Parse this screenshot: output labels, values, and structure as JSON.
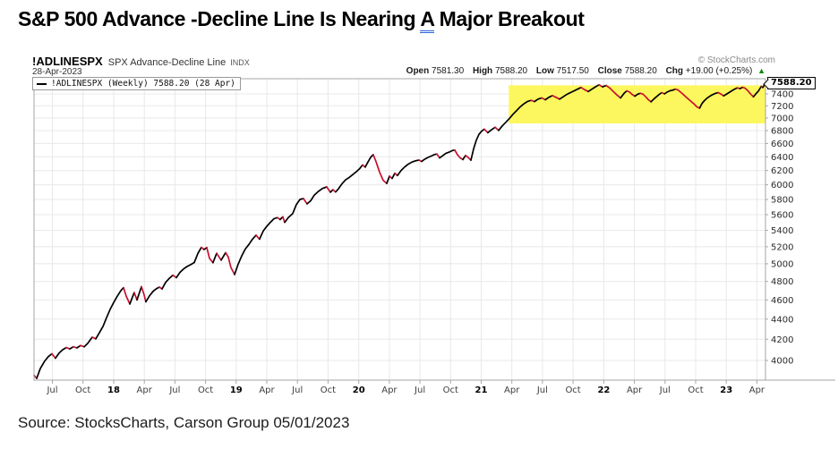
{
  "title": {
    "prefix": "S&P 500 Advance -Decline Line Is Nearing ",
    "underlined_word": "A",
    "suffix": " Major Breakout"
  },
  "source_line": "Source: StocksCharts, Carson Group 05/01/2023",
  "chart_header": {
    "symbol": "!ADLINESPX",
    "name": "SPX Advance-Decline Line",
    "exchange": "INDX",
    "date": "28-Apr-2023",
    "copyright": "© StockCharts.com",
    "quote": {
      "open_label": "Open",
      "open": "7581.30",
      "high_label": "High",
      "high": "7588.20",
      "low_label": "Low",
      "low": "7517.50",
      "close_label": "Close",
      "close": "7588.20",
      "chg_label": "Chg",
      "chg": "+19.00 (+0.25%)",
      "up_arrow": "▲"
    }
  },
  "legend_text": "!ADLINESPX (Weekly) 7588.20 (28 Apr)",
  "price_label": "7588.20",
  "colors": {
    "line_up": "#000000",
    "line_down": "#c8102e",
    "highlight": "#fcf75e",
    "grid": "#e8e8e8",
    "axis": "#a6a6a6",
    "tick_text": "#2a2a2a",
    "month_text": "#3c3c3c",
    "year_text": "#000000",
    "chg_up": "#0a8a0a",
    "title_underline": "#2b5fd9"
  },
  "chart_data": {
    "type": "line",
    "title": "!ADLINESPX (Weekly)",
    "scale": "log",
    "grid": true,
    "x_range": [
      2017.35,
      2023.32
    ],
    "value_range": [
      3822,
      7665
    ],
    "last_value": 7588.2,
    "last_date": "28 Apr 2023",
    "y_ticks": [
      7400,
      7200,
      7000,
      6800,
      6600,
      6400,
      6200,
      6000,
      5800,
      5600,
      5400,
      5200,
      5000,
      4800,
      4600,
      4400,
      4200,
      4000
    ],
    "x_ticks": [
      {
        "l": "Jul",
        "t": 2017.5
      },
      {
        "l": "Oct",
        "t": 2017.75
      },
      {
        "l": "18",
        "t": 2018.0,
        "b": 1
      },
      {
        "l": "Apr",
        "t": 2018.25
      },
      {
        "l": "Jul",
        "t": 2018.5
      },
      {
        "l": "Oct",
        "t": 2018.75
      },
      {
        "l": "19",
        "t": 2019.0,
        "b": 1
      },
      {
        "l": "Apr",
        "t": 2019.25
      },
      {
        "l": "Jul",
        "t": 2019.5
      },
      {
        "l": "Oct",
        "t": 2019.75
      },
      {
        "l": "20",
        "t": 2020.0,
        "b": 1
      },
      {
        "l": "Apr",
        "t": 2020.25
      },
      {
        "l": "Jul",
        "t": 2020.5
      },
      {
        "l": "Oct",
        "t": 2020.75
      },
      {
        "l": "21",
        "t": 2021.0,
        "b": 1
      },
      {
        "l": "Apr",
        "t": 2021.25
      },
      {
        "l": "Jul",
        "t": 2021.5
      },
      {
        "l": "Oct",
        "t": 2021.75
      },
      {
        "l": "22",
        "t": 2022.0,
        "b": 1
      },
      {
        "l": "Apr",
        "t": 2022.25
      },
      {
        "l": "Jul",
        "t": 2022.5
      },
      {
        "l": "Oct",
        "t": 2022.75
      },
      {
        "l": "23",
        "t": 2023.0,
        "b": 1
      },
      {
        "l": "Apr",
        "t": 2023.25
      }
    ],
    "highlight_region": {
      "t0": 2021.225,
      "t1": 2023.32,
      "v0": 6912,
      "v1": 7548,
      "note": "yellow breakout resistance zone"
    },
    "series": [
      {
        "name": "!ADLINESPX",
        "points": [
          [
            2017.35,
            3865
          ],
          [
            2017.372,
            3838
          ],
          [
            2017.401,
            3925
          ],
          [
            2017.438,
            3995
          ],
          [
            2017.467,
            4035
          ],
          [
            2017.496,
            4062
          ],
          [
            2017.525,
            4020
          ],
          [
            2017.555,
            4070
          ],
          [
            2017.584,
            4100
          ],
          [
            2017.613,
            4120
          ],
          [
            2017.642,
            4108
          ],
          [
            2017.671,
            4128
          ],
          [
            2017.701,
            4118
          ],
          [
            2017.73,
            4140
          ],
          [
            2017.759,
            4128
          ],
          [
            2017.788,
            4160
          ],
          [
            2017.825,
            4220
          ],
          [
            2017.854,
            4205
          ],
          [
            2017.883,
            4262
          ],
          [
            2017.913,
            4325
          ],
          [
            2017.942,
            4415
          ],
          [
            2017.971,
            4500
          ],
          [
            2018.0,
            4572
          ],
          [
            2018.029,
            4638
          ],
          [
            2018.059,
            4700
          ],
          [
            2018.081,
            4732
          ],
          [
            2018.103,
            4640
          ],
          [
            2018.132,
            4556
          ],
          [
            2018.168,
            4678
          ],
          [
            2018.19,
            4600
          ],
          [
            2018.227,
            4742
          ],
          [
            2018.249,
            4652
          ],
          [
            2018.263,
            4580
          ],
          [
            2018.293,
            4645
          ],
          [
            2018.322,
            4692
          ],
          [
            2018.351,
            4722
          ],
          [
            2018.373,
            4738
          ],
          [
            2018.395,
            4718
          ],
          [
            2018.424,
            4790
          ],
          [
            2018.453,
            4832
          ],
          [
            2018.483,
            4870
          ],
          [
            2018.512,
            4842
          ],
          [
            2018.541,
            4902
          ],
          [
            2018.57,
            4940
          ],
          [
            2018.599,
            4968
          ],
          [
            2018.629,
            4990
          ],
          [
            2018.658,
            5014
          ],
          [
            2018.687,
            5120
          ],
          [
            2018.716,
            5192
          ],
          [
            2018.738,
            5168
          ],
          [
            2018.76,
            5190
          ],
          [
            2018.782,
            5062
          ],
          [
            2018.811,
            5012
          ],
          [
            2018.841,
            5122
          ],
          [
            2018.877,
            5042
          ],
          [
            2018.914,
            5130
          ],
          [
            2018.936,
            5078
          ],
          [
            2018.957,
            4958
          ],
          [
            2018.987,
            4878
          ],
          [
            2019.016,
            4995
          ],
          [
            2019.045,
            5092
          ],
          [
            2019.074,
            5172
          ],
          [
            2019.104,
            5228
          ],
          [
            2019.133,
            5292
          ],
          [
            2019.162,
            5342
          ],
          [
            2019.191,
            5292
          ],
          [
            2019.221,
            5392
          ],
          [
            2019.25,
            5452
          ],
          [
            2019.279,
            5502
          ],
          [
            2019.308,
            5548
          ],
          [
            2019.337,
            5562
          ],
          [
            2019.359,
            5538
          ],
          [
            2019.381,
            5572
          ],
          [
            2019.396,
            5502
          ],
          [
            2019.425,
            5562
          ],
          [
            2019.462,
            5615
          ],
          [
            2019.491,
            5732
          ],
          [
            2019.52,
            5800
          ],
          [
            2019.549,
            5812
          ],
          [
            2019.579,
            5742
          ],
          [
            2019.608,
            5782
          ],
          [
            2019.637,
            5858
          ],
          [
            2019.666,
            5902
          ],
          [
            2019.703,
            5948
          ],
          [
            2019.739,
            5972
          ],
          [
            2019.769,
            5898
          ],
          [
            2019.79,
            5932
          ],
          [
            2019.812,
            5902
          ],
          [
            2019.834,
            5942
          ],
          [
            2019.863,
            6012
          ],
          [
            2019.893,
            6068
          ],
          [
            2019.922,
            6102
          ],
          [
            2019.951,
            6142
          ],
          [
            2019.98,
            6182
          ],
          [
            2020.01,
            6232
          ],
          [
            2020.032,
            6282
          ],
          [
            2020.053,
            6250
          ],
          [
            2020.075,
            6322
          ],
          [
            2020.097,
            6392
          ],
          [
            2020.119,
            6432
          ],
          [
            2020.141,
            6330
          ],
          [
            2020.17,
            6180
          ],
          [
            2020.2,
            6062
          ],
          [
            2020.229,
            6018
          ],
          [
            2020.251,
            6122
          ],
          [
            2020.273,
            6088
          ],
          [
            2020.295,
            6162
          ],
          [
            2020.316,
            6130
          ],
          [
            2020.346,
            6202
          ],
          [
            2020.375,
            6252
          ],
          [
            2020.404,
            6292
          ],
          [
            2020.433,
            6322
          ],
          [
            2020.463,
            6342
          ],
          [
            2020.492,
            6352
          ],
          [
            2020.514,
            6332
          ],
          [
            2020.536,
            6362
          ],
          [
            2020.565,
            6392
          ],
          [
            2020.594,
            6412
          ],
          [
            2020.616,
            6432
          ],
          [
            2020.638,
            6442
          ],
          [
            2020.66,
            6385
          ],
          [
            2020.682,
            6412
          ],
          [
            2020.711,
            6452
          ],
          [
            2020.741,
            6472
          ],
          [
            2020.763,
            6492
          ],
          [
            2020.784,
            6502
          ],
          [
            2020.806,
            6430
          ],
          [
            2020.828,
            6385
          ],
          [
            2020.85,
            6360
          ],
          [
            2020.872,
            6420
          ],
          [
            2020.894,
            6390
          ],
          [
            2020.916,
            6350
          ],
          [
            2020.938,
            6520
          ],
          [
            2020.96,
            6650
          ],
          [
            2020.981,
            6740
          ],
          [
            2021.003,
            6790
          ],
          [
            2021.025,
            6822
          ],
          [
            2021.054,
            6768
          ],
          [
            2021.084,
            6812
          ],
          [
            2021.113,
            6852
          ],
          [
            2021.142,
            6802
          ],
          [
            2021.171,
            6872
          ],
          [
            2021.201,
            6932
          ],
          [
            2021.23,
            6992
          ],
          [
            2021.259,
            7062
          ],
          [
            2021.289,
            7122
          ],
          [
            2021.318,
            7182
          ],
          [
            2021.347,
            7232
          ],
          [
            2021.377,
            7272
          ],
          [
            2021.406,
            7292
          ],
          [
            2021.435,
            7272
          ],
          [
            2021.464,
            7312
          ],
          [
            2021.493,
            7332
          ],
          [
            2021.523,
            7302
          ],
          [
            2021.552,
            7342
          ],
          [
            2021.581,
            7372
          ],
          [
            2021.61,
            7342
          ],
          [
            2021.64,
            7312
          ],
          [
            2021.669,
            7352
          ],
          [
            2021.698,
            7392
          ],
          [
            2021.727,
            7422
          ],
          [
            2021.757,
            7452
          ],
          [
            2021.786,
            7482
          ],
          [
            2021.815,
            7512
          ],
          [
            2021.844,
            7472
          ],
          [
            2021.874,
            7442
          ],
          [
            2021.903,
            7482
          ],
          [
            2021.932,
            7522
          ],
          [
            2021.961,
            7558
          ],
          [
            2021.991,
            7522
          ],
          [
            2022.02,
            7545
          ],
          [
            2022.049,
            7502
          ],
          [
            2022.078,
            7442
          ],
          [
            2022.108,
            7382
          ],
          [
            2022.137,
            7332
          ],
          [
            2022.166,
            7412
          ],
          [
            2022.188,
            7452
          ],
          [
            2022.21,
            7432
          ],
          [
            2022.232,
            7392
          ],
          [
            2022.254,
            7362
          ],
          [
            2022.276,
            7395
          ],
          [
            2022.298,
            7412
          ],
          [
            2022.32,
            7398
          ],
          [
            2022.342,
            7352
          ],
          [
            2022.364,
            7302
          ],
          [
            2022.386,
            7268
          ],
          [
            2022.408,
            7312
          ],
          [
            2022.43,
            7352
          ],
          [
            2022.452,
            7392
          ],
          [
            2022.474,
            7422
          ],
          [
            2022.496,
            7402
          ],
          [
            2022.518,
            7432
          ],
          [
            2022.54,
            7455
          ],
          [
            2022.562,
            7465
          ],
          [
            2022.584,
            7482
          ],
          [
            2022.606,
            7468
          ],
          [
            2022.628,
            7430
          ],
          [
            2022.65,
            7390
          ],
          [
            2022.672,
            7348
          ],
          [
            2022.694,
            7308
          ],
          [
            2022.716,
            7268
          ],
          [
            2022.738,
            7228
          ],
          [
            2022.76,
            7182
          ],
          [
            2022.782,
            7162
          ],
          [
            2022.803,
            7242
          ],
          [
            2022.825,
            7295
          ],
          [
            2022.847,
            7335
          ],
          [
            2022.869,
            7365
          ],
          [
            2022.891,
            7392
          ],
          [
            2022.913,
            7412
          ],
          [
            2022.935,
            7422
          ],
          [
            2022.957,
            7398
          ],
          [
            2022.979,
            7368
          ],
          [
            2023.001,
            7395
          ],
          [
            2023.023,
            7425
          ],
          [
            2023.045,
            7455
          ],
          [
            2023.067,
            7482
          ],
          [
            2023.089,
            7505
          ],
          [
            2023.111,
            7492
          ],
          [
            2023.133,
            7515
          ],
          [
            2023.155,
            7498
          ],
          [
            2023.177,
            7455
          ],
          [
            2023.199,
            7398
          ],
          [
            2023.221,
            7352
          ],
          [
            2023.243,
            7405
          ],
          [
            2023.264,
            7455
          ],
          [
            2023.286,
            7532
          ],
          [
            2023.298,
            7512
          ],
          [
            2023.308,
            7548
          ],
          [
            2023.32,
            7588.2
          ]
        ]
      }
    ]
  }
}
